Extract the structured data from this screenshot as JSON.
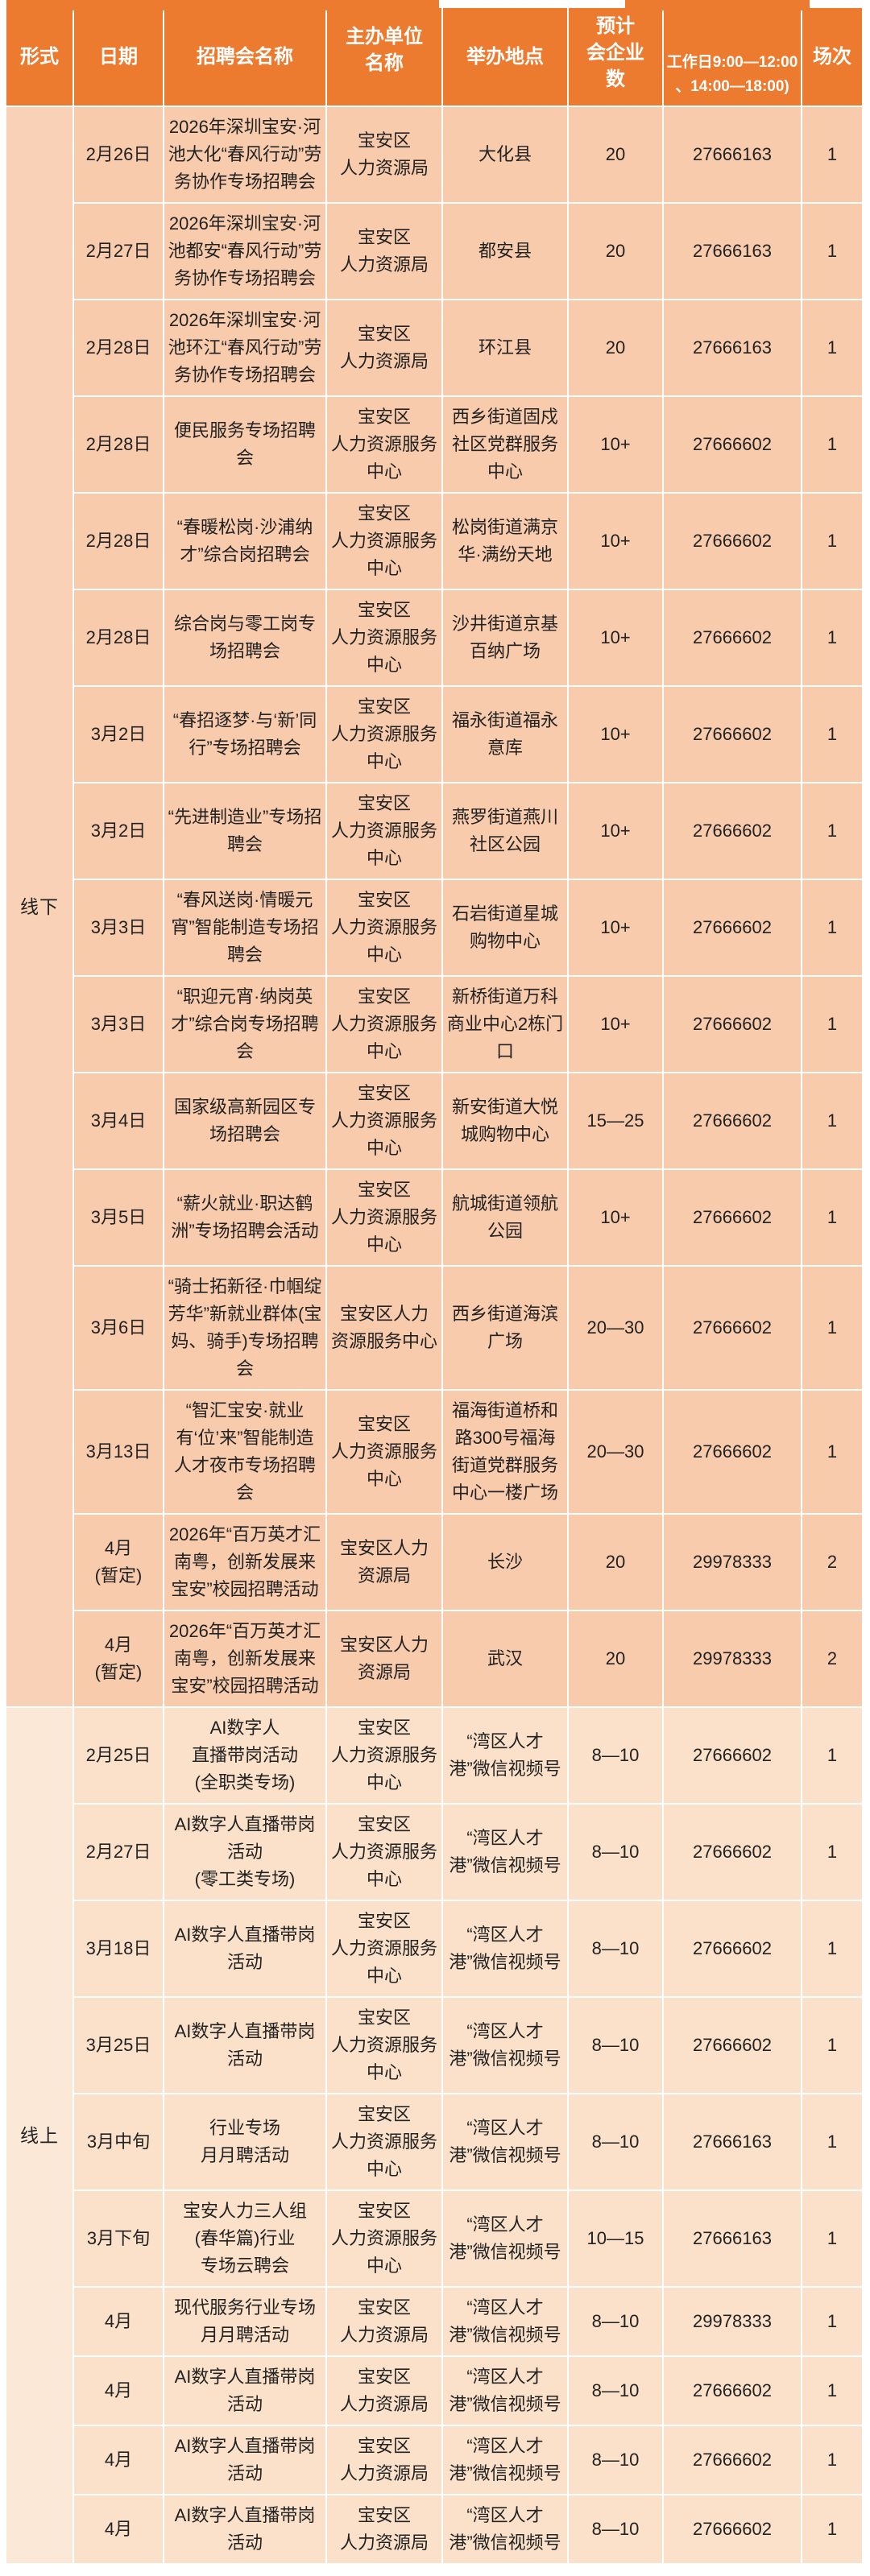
{
  "table": {
    "headers": [
      "形式",
      "日期",
      "招聘会名称",
      "主办单位\n名称",
      "举办地点",
      "预计\n会企业\n数",
      "工作日9:00—12:00\n、14:00—18:00)",
      "场次"
    ],
    "sections": [
      {
        "key": "offline",
        "label": "线下",
        "rows": [
          [
            "2月26日",
            "2026年深圳宝安·河池大化“春风行动”劳务协作专场招聘会",
            "宝安区\n人力资源局",
            "大化县",
            "20",
            "27666163",
            "1"
          ],
          [
            "2月27日",
            "2026年深圳宝安·河池都安“春风行动”劳务协作专场招聘会",
            "宝安区\n人力资源局",
            "都安县",
            "20",
            "27666163",
            "1"
          ],
          [
            "2月28日",
            "2026年深圳宝安·河池环江“春风行动”劳务协作专场招聘会",
            "宝安区\n人力资源局",
            "环江县",
            "20",
            "27666163",
            "1"
          ],
          [
            "2月28日",
            "便民服务专场招聘会",
            "宝安区\n人力资源服务中心",
            "西乡街道固戍社区党群服务中心",
            "10+",
            "27666602",
            "1"
          ],
          [
            "2月28日",
            "“春暖松岗·沙浦纳才”综合岗招聘会",
            "宝安区\n人力资源服务中心",
            "松岗街道满京华·满纷天地",
            "10+",
            "27666602",
            "1"
          ],
          [
            "2月28日",
            "综合岗与零工岗专场招聘会",
            "宝安区\n人力资源服务中心",
            "沙井街道京基百纳广场",
            "10+",
            "27666602",
            "1"
          ],
          [
            "3月2日",
            "“春招逐梦·与‘新’同行”专场招聘会",
            "宝安区\n人力资源服务中心",
            "福永街道福永意库",
            "10+",
            "27666602",
            "1"
          ],
          [
            "3月2日",
            "“先进制造业”专场招聘会",
            "宝安区\n人力资源服务中心",
            "燕罗街道燕川社区公园",
            "10+",
            "27666602",
            "1"
          ],
          [
            "3月3日",
            "“春风送岗·情暖元宵”智能制造专场招聘会",
            "宝安区\n人力资源服务中心",
            "石岩街道星城购物中心",
            "10+",
            "27666602",
            "1"
          ],
          [
            "3月3日",
            "“职迎元宵·纳岗英才”综合岗专场招聘会",
            "宝安区\n人力资源服务中心",
            "新桥街道万科商业中心2栋门口",
            "10+",
            "27666602",
            "1"
          ],
          [
            "3月4日",
            "国家级高新园区专场招聘会",
            "宝安区\n人力资源服务中心",
            "新安街道大悦城购物中心",
            "15—25",
            "27666602",
            "1"
          ],
          [
            "3月5日",
            "“薪火就业·职达鹤洲”专场招聘会活动",
            "宝安区\n人力资源服务中心",
            "航城街道领航公园",
            "10+",
            "27666602",
            "1"
          ],
          [
            "3月6日",
            "“骑士拓新径·巾帼绽芳华”新就业群体(宝妈、骑手)专场招聘会",
            "宝安区人力\n资源服务中心",
            "西乡街道海滨广场",
            "20—30",
            "27666602",
            "1"
          ],
          [
            "3月13日",
            "“智汇宝安·就业有‘位’来”智能制造人才夜市专场招聘会",
            "宝安区\n人力资源服务中心",
            "福海街道桥和路300号福海街道党群服务中心一楼广场",
            "20—30",
            "27666602",
            "1"
          ],
          [
            "4月\n(暂定)",
            "2026年“百万英才汇南粤，创新发展来宝安”校园招聘活动",
            "宝安区人力\n资源局",
            "长沙",
            "20",
            "29978333",
            "2"
          ],
          [
            "4月\n(暂定)",
            "2026年“百万英才汇南粤，创新发展来宝安”校园招聘活动",
            "宝安区人力\n资源局",
            "武汉",
            "20",
            "29978333",
            "2"
          ]
        ]
      },
      {
        "key": "online",
        "label": "线上",
        "rows": [
          [
            "2月25日",
            "AI数字人\n直播带岗活动\n(全职类专场)",
            "宝安区\n人力资源服务中心",
            "“湾区人才港”微信视频号",
            "8—10",
            "27666602",
            "1"
          ],
          [
            "2月27日",
            "AI数字人直播带岗活动\n(零工类专场)",
            "宝安区\n人力资源服务中心",
            "“湾区人才港”微信视频号",
            "8—10",
            "27666602",
            "1"
          ],
          [
            "3月18日",
            "AI数字人直播带岗活动",
            "宝安区\n人力资源服务中心",
            "“湾区人才港”微信视频号",
            "8—10",
            "27666602",
            "1"
          ],
          [
            "3月25日",
            "AI数字人直播带岗活动",
            "宝安区\n人力资源服务中心",
            "“湾区人才港”微信视频号",
            "8—10",
            "27666602",
            "1"
          ],
          [
            "3月中旬",
            "行业专场\n月月聘活动",
            "宝安区\n人力资源服务中心",
            "“湾区人才港”微信视频号",
            "8—10",
            "27666163",
            "1"
          ],
          [
            "3月下旬",
            "宝安人力三人组\n(春华篇)行业\n专场云聘会",
            "宝安区\n人力资源服务中心",
            "“湾区人才港”微信视频号",
            "10—15",
            "27666163",
            "1"
          ],
          [
            "4月",
            "现代服务行业专场月月聘活动",
            "宝安区\n人力资源局",
            "“湾区人才港”微信视频号",
            "8—10",
            "29978333",
            "1"
          ],
          [
            "4月",
            "AI数字人直播带岗活动",
            "宝安区\n人力资源局",
            "“湾区人才港”微信视频号",
            "8—10",
            "27666602",
            "1"
          ],
          [
            "4月",
            "AI数字人直播带岗活动",
            "宝安区\n人力资源局",
            "“湾区人才港”微信视频号",
            "8—10",
            "27666602",
            "1"
          ],
          [
            "4月",
            "AI数字人直播带岗活动",
            "宝安区\n人力资源局",
            "“湾区人才港”微信视频号",
            "8—10",
            "27666602",
            "1"
          ]
        ]
      }
    ]
  },
  "colors": {
    "header_bg": "#ED7B2F",
    "header_text": "#FFFFFF",
    "offline_row_bg": "#F8CBAD",
    "offline_label_bg": "#F9D1B6",
    "online_row_bg": "#FBE1CA",
    "online_label_bg": "#FBE8D7",
    "grid_line": "#FFFFFF",
    "body_text": "#222222"
  }
}
